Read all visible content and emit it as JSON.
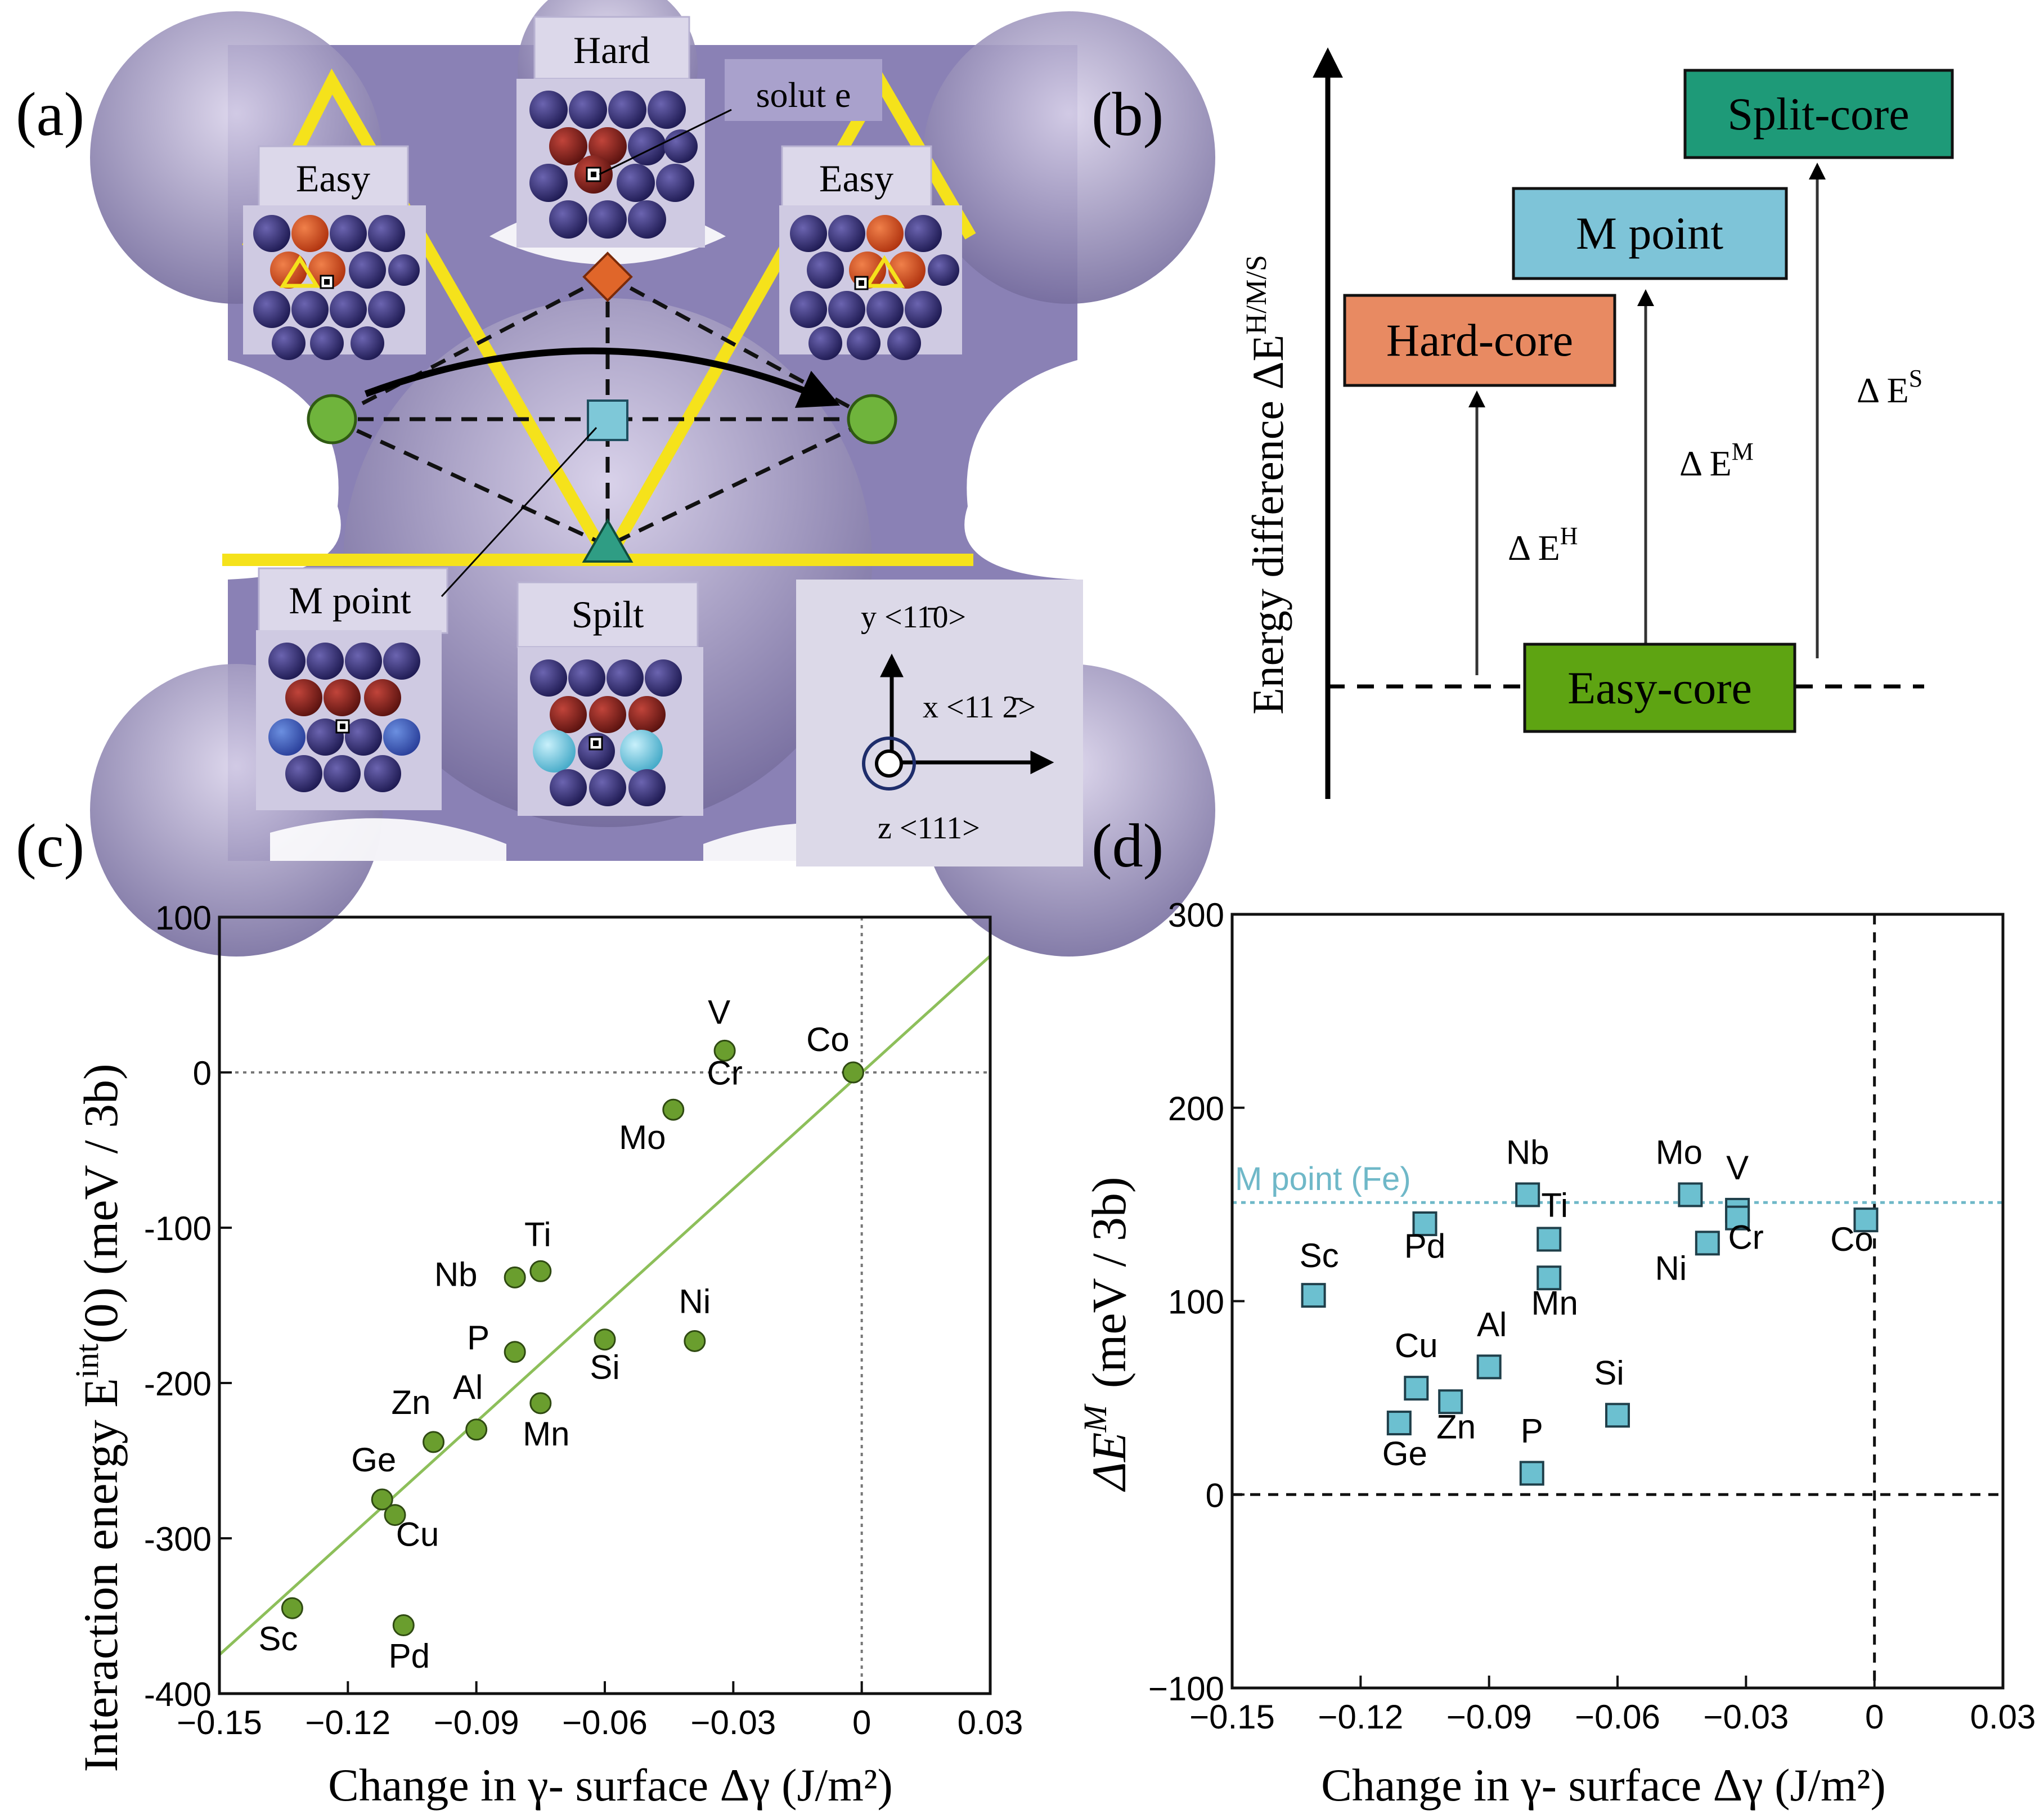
{
  "panel_a": {
    "label": "(a)",
    "hard_label": "Hard",
    "solute_label": "solut e",
    "easy_left_label": "Easy",
    "easy_right_label": "Easy",
    "mpoint_label": "M point",
    "split_label": "Spilt",
    "axis_y": "y <11̄0>",
    "axis_x": "x <11 2̄>",
    "axis_z": "z <111>",
    "colors": {
      "background": "#8a81b5",
      "yellow": "#f5e21b",
      "green": "#6fb43c",
      "orange": "#e0662a",
      "cyan": "#7ec8d8",
      "teal": "#2f9d84",
      "atom_navy": "#2a2566",
      "atom_red": "#7a1f1a"
    }
  },
  "panel_b": {
    "label": "(b)",
    "ylabel": "Energy difference  ΔE",
    "ylabel_sup": "H/M/S",
    "boxes": [
      {
        "id": "split",
        "label": "Split-core",
        "color": "#1e9a78"
      },
      {
        "id": "mpoint",
        "label": "M point",
        "color": "#7ec4d8"
      },
      {
        "id": "hard",
        "label": "Hard-core",
        "color": "#e88a62"
      },
      {
        "id": "easy",
        "label": "Easy-core",
        "color": "#5ea412"
      }
    ],
    "deltas": [
      {
        "id": "h",
        "base": "Δ E",
        "sup": "H"
      },
      {
        "id": "m",
        "base": "Δ E",
        "sup": "M"
      },
      {
        "id": "s",
        "base": "Δ E",
        "sup": "S"
      }
    ]
  },
  "chart_data": [
    {
      "panel": "(c)",
      "type": "scatter",
      "xlabel": "Change in γ- surface Δγ (J/m²)",
      "ylabel": "Interaction energy  E",
      "ylabel_sup": "int",
      "ylabel_tail": "(0) (meV / 3b)",
      "xlim": [
        -0.15,
        0.03
      ],
      "ylim": [
        -400,
        100
      ],
      "xticks": [
        -0.15,
        -0.12,
        -0.09,
        -0.06,
        -0.03,
        0,
        0.03
      ],
      "xtick_labels": [
        "−0.15",
        "−0.12",
        "−0.09",
        "−0.06",
        "−0.03",
        "0",
        "0.03"
      ],
      "yticks": [
        -400,
        -300,
        -200,
        -100,
        0,
        100
      ],
      "ytick_labels": [
        "-400",
        "-300",
        "-200",
        "-100",
        "0",
        "100"
      ],
      "point_color": "#6a9e2e",
      "fit_line": {
        "x": [
          -0.15,
          0.03
        ],
        "y": [
          -375,
          75
        ],
        "color": "#8dbf5a"
      },
      "reference_lines": {
        "x0": 0,
        "y0": 0
      },
      "points": [
        {
          "label": "V",
          "x": -0.032,
          "y": 14
        },
        {
          "label": "Co",
          "x": -0.002,
          "y": 0
        },
        {
          "label": "Cr",
          "x": -0.032,
          "y": 14,
          "label_only": true
        },
        {
          "label": "Mo",
          "x": -0.044,
          "y": -24
        },
        {
          "label": "Ti",
          "x": -0.075,
          "y": -128
        },
        {
          "label": "Nb",
          "x": -0.081,
          "y": -132
        },
        {
          "label": "Ni",
          "x": -0.039,
          "y": -173
        },
        {
          "label": "P",
          "x": -0.081,
          "y": -180
        },
        {
          "label": "Si",
          "x": -0.06,
          "y": -172
        },
        {
          "label": "Mn",
          "x": -0.075,
          "y": -213
        },
        {
          "label": "Al",
          "x": -0.09,
          "y": -230
        },
        {
          "label": "Zn",
          "x": -0.1,
          "y": -238
        },
        {
          "label": "Ge",
          "x": -0.112,
          "y": -275
        },
        {
          "label": "Cu",
          "x": -0.109,
          "y": -285
        },
        {
          "label": "Sc",
          "x": -0.133,
          "y": -345
        },
        {
          "label": "Pd",
          "x": -0.107,
          "y": -356
        }
      ]
    },
    {
      "panel": "(d)",
      "type": "scatter",
      "xlabel": "Change in γ- surface Δγ (J/m²)",
      "ylabel": "ΔE",
      "ylabel_sup": "M",
      "ylabel_tail": "(meV / 3b)",
      "xlim": [
        -0.15,
        0.03
      ],
      "ylim": [
        -100,
        300
      ],
      "xticks": [
        -0.15,
        -0.12,
        -0.09,
        -0.06,
        -0.03,
        0,
        0.03
      ],
      "xtick_labels": [
        "−0.15",
        "−0.12",
        "−0.09",
        "−0.06",
        "−0.03",
        "0",
        "0.03"
      ],
      "yticks": [
        -100,
        0,
        100,
        200,
        300
      ],
      "ytick_labels": [
        "−100",
        "0",
        "100",
        "200",
        "300"
      ],
      "point_color": "#6cc0d0",
      "reference_lines": {
        "x0": 0,
        "y0": 0
      },
      "reference_annotation": {
        "label": "M point (Fe)",
        "y": 151,
        "color": "#6fb8c8"
      },
      "points": [
        {
          "label": "Mo",
          "x": -0.043,
          "y": 155
        },
        {
          "label": "Nb",
          "x": -0.081,
          "y": 155
        },
        {
          "label": "V",
          "x": -0.032,
          "y": 147
        },
        {
          "label": "Cr",
          "x": -0.032,
          "y": 143
        },
        {
          "label": "Co",
          "x": -0.002,
          "y": 142
        },
        {
          "label": "Pd",
          "x": -0.105,
          "y": 140
        },
        {
          "label": "Ti",
          "x": -0.076,
          "y": 132
        },
        {
          "label": "Ni",
          "x": -0.039,
          "y": 130
        },
        {
          "label": "Mn",
          "x": -0.076,
          "y": 112
        },
        {
          "label": "Sc",
          "x": -0.131,
          "y": 103
        },
        {
          "label": "Al",
          "x": -0.09,
          "y": 66
        },
        {
          "label": "Cu",
          "x": -0.107,
          "y": 55
        },
        {
          "label": "Zn",
          "x": -0.099,
          "y": 48
        },
        {
          "label": "Si",
          "x": -0.06,
          "y": 41
        },
        {
          "label": "Ge",
          "x": -0.111,
          "y": 37
        },
        {
          "label": "P",
          "x": -0.08,
          "y": 11
        }
      ]
    }
  ]
}
